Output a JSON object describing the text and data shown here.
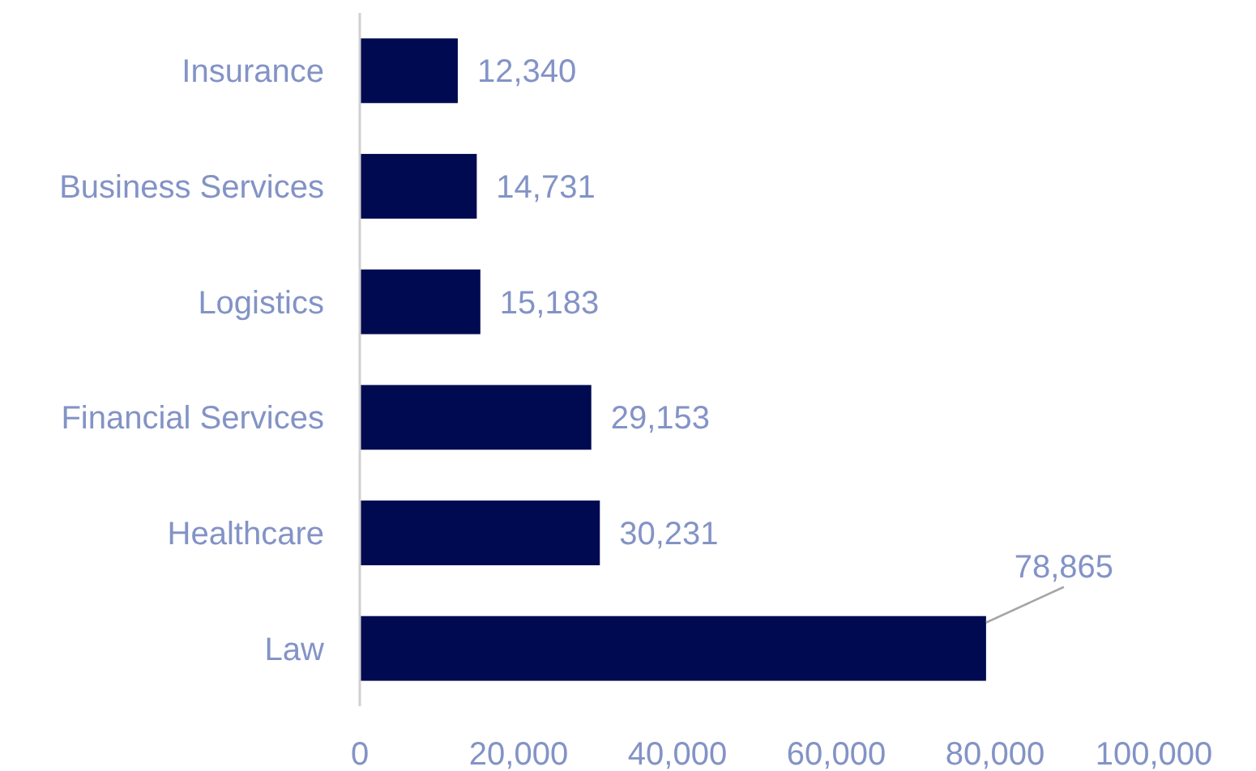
{
  "chart_data": {
    "type": "bar",
    "orientation": "horizontal",
    "categories": [
      "Insurance",
      "Business Services",
      "Logistics",
      "Financial Services",
      "Healthcare",
      "Law"
    ],
    "values": [
      12340,
      14731,
      15183,
      29153,
      30231,
      78865
    ],
    "value_labels": [
      "12,340",
      "14,731",
      "15,183",
      "29,153",
      "30,231",
      "78,865"
    ],
    "color": "#000a50",
    "xlim": [
      0,
      100000
    ],
    "xticks": [
      {
        "value": 0,
        "label": "0"
      },
      {
        "value": 20000,
        "label": "20,000"
      },
      {
        "value": 40000,
        "label": "40,000"
      },
      {
        "value": 60000,
        "label": "60,000"
      },
      {
        "value": 80000,
        "label": "80,000"
      },
      {
        "value": 100000,
        "label": "100,000"
      }
    ],
    "grid": false
  }
}
